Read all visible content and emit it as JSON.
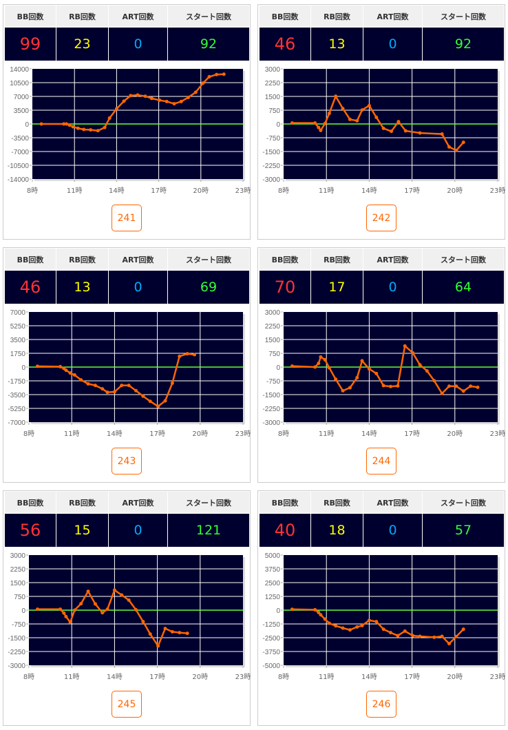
{
  "headers": [
    "BB回数",
    "RB回数",
    "ART回数",
    "スタート回数"
  ],
  "colors": {
    "bb": "#ff3333",
    "rb": "#ffff00",
    "art": "#00aaff",
    "start": "#33ff33",
    "line": "#ff6600",
    "zero": "#66ff33",
    "plot_bg": "#00002e"
  },
  "panels": [
    {
      "machine": "241",
      "bb": "99",
      "rb": "23",
      "art": "0",
      "start": "92"
    },
    {
      "machine": "242",
      "bb": "46",
      "rb": "13",
      "art": "0",
      "start": "92"
    },
    {
      "machine": "243",
      "bb": "46",
      "rb": "13",
      "art": "0",
      "start": "69"
    },
    {
      "machine": "244",
      "bb": "70",
      "rb": "17",
      "art": "0",
      "start": "64"
    },
    {
      "machine": "245",
      "bb": "56",
      "rb": "15",
      "art": "0",
      "start": "121"
    },
    {
      "machine": "246",
      "bb": "40",
      "rb": "18",
      "art": "0",
      "start": "57"
    }
  ],
  "chart_data": [
    {
      "type": "line",
      "title": "241",
      "xlabel": "",
      "ylabel": "",
      "xlim": [
        8,
        23
      ],
      "ylim": [
        -14000,
        14000
      ],
      "xticks": [
        8,
        11,
        14,
        17,
        20,
        23
      ],
      "xtick_labels": [
        "8時",
        "11時",
        "14時",
        "17時",
        "20時",
        "23時"
      ],
      "yticks": [
        14000,
        10500,
        7000,
        3500,
        0,
        -3500,
        -7000,
        -10500,
        -14000
      ],
      "grid": true,
      "x": [
        8.64,
        10.24,
        10.43,
        10.65,
        10.9,
        11.25,
        11.66,
        12.15,
        12.67,
        13.15,
        13.5,
        14.0,
        14.52,
        15.0,
        15.5,
        16.04,
        16.5,
        17.05,
        17.57,
        18.1,
        18.6,
        19.1,
        19.63,
        20.16,
        20.6,
        21.12,
        21.64
      ],
      "y": [
        0,
        0,
        0,
        -300,
        -700,
        -1100,
        -1400,
        -1500,
        -1700,
        -900,
        1500,
        3850,
        5800,
        7200,
        7350,
        7050,
        6500,
        6050,
        5700,
        5150,
        5700,
        6750,
        8050,
        10400,
        12000,
        12550,
        12650
      ]
    },
    {
      "type": "line",
      "title": "242",
      "xlim": [
        8,
        23
      ],
      "ylim": [
        -3000,
        3000
      ],
      "xticks": [
        8,
        11,
        14,
        17,
        20,
        23
      ],
      "xtick_labels": [
        "8時",
        "11時",
        "14時",
        "17時",
        "20時",
        "23時"
      ],
      "yticks": [
        3000,
        2250,
        1500,
        750,
        0,
        -750,
        -1500,
        -2250,
        -3000
      ],
      "grid": true,
      "x": [
        8.6,
        10.2,
        10.45,
        10.6,
        10.9,
        11.2,
        11.65,
        12.15,
        12.65,
        13.15,
        13.5,
        14.0,
        14.5,
        15.0,
        15.55,
        16.05,
        16.55,
        17.55,
        19.1,
        19.6,
        20.1,
        20.6
      ],
      "y": [
        50,
        50,
        -190,
        -350,
        25,
        575,
        1510,
        840,
        250,
        175,
        760,
        1000,
        360,
        -240,
        -400,
        125,
        -375,
        -490,
        -550,
        -1250,
        -1440,
        -1000
      ]
    },
    {
      "type": "line",
      "title": "243",
      "xlim": [
        8,
        23
      ],
      "ylim": [
        -7000,
        7000
      ],
      "xticks": [
        8,
        11,
        14,
        17,
        20,
        23
      ],
      "xtick_labels": [
        "8時",
        "11時",
        "14時",
        "17時",
        "20時",
        "23時"
      ],
      "yticks": [
        7000,
        5250,
        3500,
        1750,
        0,
        -1750,
        -3500,
        -5250,
        -7000
      ],
      "grid": true,
      "x": [
        8.6,
        10.2,
        10.45,
        10.6,
        10.9,
        11.2,
        11.65,
        12.15,
        12.65,
        13.15,
        13.5,
        14.0,
        14.5,
        15.0,
        15.5,
        16.0,
        16.5,
        17.05,
        17.55,
        18.05,
        18.55,
        19.1,
        19.6
      ],
      "y": [
        100,
        50,
        -175,
        -400,
        -760,
        -1000,
        -1630,
        -2130,
        -2330,
        -2770,
        -3200,
        -3150,
        -2330,
        -2330,
        -3000,
        -3700,
        -4350,
        -5000,
        -4290,
        -2040,
        1370,
        1690,
        1575
      ]
    },
    {
      "type": "line",
      "title": "244",
      "xlim": [
        8,
        23
      ],
      "ylim": [
        -3000,
        3000
      ],
      "xticks": [
        8,
        11,
        14,
        17,
        20,
        23
      ],
      "xtick_labels": [
        "8時",
        "11時",
        "14時",
        "17時",
        "20時",
        "23時"
      ],
      "yticks": [
        3000,
        2250,
        1500,
        750,
        0,
        -750,
        -1500,
        -2250,
        -3000
      ],
      "grid": true,
      "x": [
        8.6,
        10.2,
        10.45,
        10.6,
        10.9,
        11.2,
        11.65,
        12.15,
        12.65,
        13.15,
        13.5,
        14.0,
        14.5,
        15.0,
        15.5,
        16.0,
        16.5,
        17.05,
        17.55,
        18.05,
        18.55,
        19.1,
        19.6,
        20.1,
        20.6,
        21.1,
        21.6
      ],
      "y": [
        50,
        0,
        200,
        550,
        400,
        -40,
        -660,
        -1290,
        -1125,
        -575,
        340,
        -100,
        -350,
        -1010,
        -1060,
        -1025,
        1150,
        775,
        125,
        -210,
        -740,
        -1440,
        -1040,
        -1040,
        -1310,
        -1040,
        -1100
      ]
    },
    {
      "type": "line",
      "title": "245",
      "xlim": [
        8,
        23
      ],
      "ylim": [
        -3000,
        3000
      ],
      "xticks": [
        8,
        11,
        14,
        17,
        20,
        23
      ],
      "xtick_labels": [
        "8時",
        "11時",
        "14時",
        "17時",
        "20時",
        "23時"
      ],
      "yticks": [
        3000,
        2250,
        1500,
        750,
        0,
        -750,
        -1500,
        -2250,
        -3000
      ],
      "grid": true,
      "x": [
        8.6,
        10.2,
        10.45,
        10.6,
        10.9,
        11.2,
        11.65,
        12.15,
        12.65,
        13.15,
        13.5,
        14.0,
        14.5,
        15.0,
        15.5,
        16.0,
        16.5,
        17.05,
        17.55,
        18.05,
        18.55,
        19.1
      ],
      "y": [
        50,
        50,
        -160,
        -350,
        -660,
        0,
        350,
        1025,
        340,
        -140,
        50,
        1090,
        825,
        550,
        25,
        -625,
        -1300,
        -1950,
        -1000,
        -1175,
        -1225,
        -1260
      ]
    },
    {
      "type": "line",
      "title": "246",
      "xlim": [
        8,
        23
      ],
      "ylim": [
        -5000,
        5000
      ],
      "xticks": [
        8,
        11,
        14,
        17,
        20,
        23
      ],
      "xtick_labels": [
        "8時",
        "11時",
        "14時",
        "17時",
        "20時",
        "23時"
      ],
      "yticks": [
        5000,
        3750,
        2500,
        1250,
        0,
        -1250,
        -2500,
        -3750,
        -5000
      ],
      "grid": true,
      "x": [
        8.6,
        10.2,
        10.45,
        10.6,
        10.9,
        11.2,
        11.65,
        12.15,
        12.65,
        13.15,
        13.5,
        14.0,
        14.5,
        15.0,
        15.5,
        16.0,
        16.5,
        17.05,
        17.55,
        18.55,
        19.1,
        19.6,
        20.1,
        20.6
      ],
      "y": [
        80,
        40,
        -210,
        -420,
        -810,
        -1190,
        -1420,
        -1625,
        -1790,
        -1520,
        -1400,
        -920,
        -1040,
        -1730,
        -2040,
        -2310,
        -1900,
        -2310,
        -2375,
        -2460,
        -2375,
        -3040,
        -2400,
        -1730
      ]
    }
  ]
}
